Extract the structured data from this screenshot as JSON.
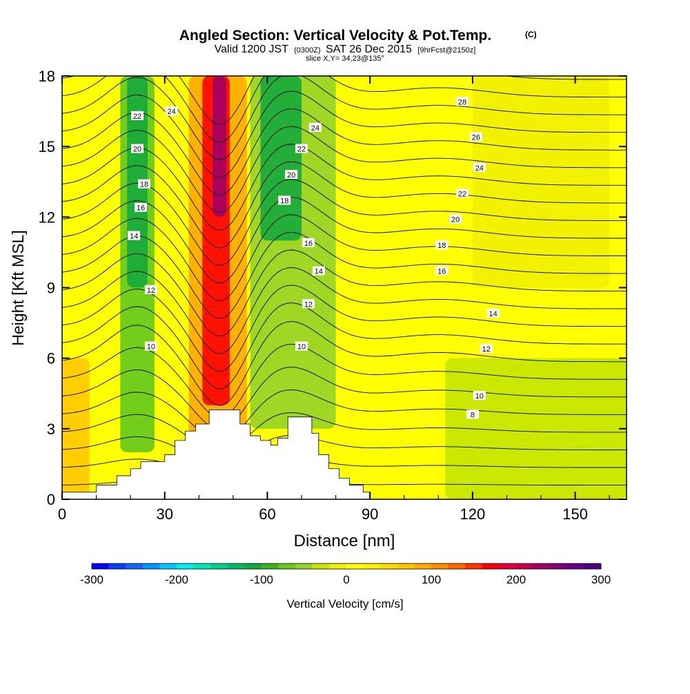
{
  "chart_data": {
    "type": "heatmap",
    "title": "Angled Section: Vertical Velocity & Pot.Temp.",
    "title_mark": "(C)",
    "subtitle": {
      "lead": "Valid 1200 JST",
      "utc": "(0300Z)",
      "date": "SAT 26 Dec 2015",
      "run": "[9hrFcst@2150z]"
    },
    "slice_label": "slice X,Y= 34,23@135°",
    "xlabel": "Distance [nm]",
    "ylabel": "Height [Kft MSL]",
    "xlim": [
      0,
      165
    ],
    "ylim": [
      0,
      18
    ],
    "x_ticks": [
      "0",
      "30",
      "60",
      "90",
      "120",
      "150"
    ],
    "y_ticks": [
      "0",
      "3",
      "6",
      "9",
      "12",
      "15",
      "18"
    ],
    "colorbar": {
      "label": "Vertical Velocity [cm/s]",
      "range": [
        -300,
        300
      ],
      "ticks": [
        "-300",
        "-200",
        "-100",
        "0",
        "100",
        "200",
        "300"
      ],
      "colors": [
        "#0000ff",
        "#0a3cff",
        "#1464ff",
        "#0096ff",
        "#00c8ff",
        "#00f0f0",
        "#00e6b4",
        "#00d08c",
        "#00bc64",
        "#14aa3c",
        "#3cb41e",
        "#64c81e",
        "#96d228",
        "#c8e600",
        "#f0f000",
        "#ffff00",
        "#fff000",
        "#ffdc00",
        "#ffc800",
        "#ffaa00",
        "#ff8c00",
        "#ff6400",
        "#ff3200",
        "#ff0000",
        "#e6003c",
        "#c8004b",
        "#a00064",
        "#820078",
        "#64008c",
        "#460082"
      ]
    },
    "velocity_field": {
      "x_nm": [
        0,
        3,
        9,
        15,
        18,
        21,
        25,
        28,
        31,
        34,
        37,
        40,
        43,
        46,
        48,
        50,
        53,
        56,
        59,
        62,
        65,
        68,
        71,
        74,
        77,
        80,
        85,
        90,
        95,
        100,
        105,
        108,
        112,
        115,
        118,
        121,
        124,
        127,
        130,
        135,
        140,
        145,
        150,
        155,
        160,
        165
      ],
      "z_kft": [
        0,
        1,
        2,
        3,
        4,
        5,
        6,
        7,
        8,
        9,
        10,
        11,
        12,
        13,
        14,
        15,
        16,
        17,
        18
      ],
      "regions_cm_s": [
        {
          "x": [
            0,
            8
          ],
          "z": [
            0,
            6
          ],
          "w": 60
        },
        {
          "x": [
            17,
            27
          ],
          "z": [
            2,
            18
          ],
          "w": -70
        },
        {
          "x": [
            19,
            25
          ],
          "z": [
            9,
            18
          ],
          "w": -120
        },
        {
          "x": [
            37,
            54
          ],
          "z": [
            0,
            18
          ],
          "w": 80
        },
        {
          "x": [
            41,
            49
          ],
          "z": [
            4,
            18
          ],
          "w": 160
        },
        {
          "x": [
            44,
            48
          ],
          "z": [
            12,
            18
          ],
          "w": 220
        },
        {
          "x": [
            55,
            80
          ],
          "z": [
            3,
            18
          ],
          "w": -60
        },
        {
          "x": [
            58,
            70
          ],
          "z": [
            11,
            18
          ],
          "w": -110
        },
        {
          "x": [
            85,
            110
          ],
          "z": [
            0,
            8
          ],
          "w": 10
        },
        {
          "x": [
            112,
            165
          ],
          "z": [
            0,
            6
          ],
          "w": -30
        },
        {
          "x": [
            120,
            160
          ],
          "z": [
            9,
            18
          ],
          "w": -20
        }
      ]
    },
    "theta_contours": {
      "labels": [
        {
          "text": "28",
          "x": 117,
          "z": 16.9
        },
        {
          "text": "26",
          "x": 121,
          "z": 15.4
        },
        {
          "text": "24",
          "x": 122,
          "z": 14.1
        },
        {
          "text": "22",
          "x": 117,
          "z": 13.0
        },
        {
          "text": "20",
          "x": 115,
          "z": 11.9
        },
        {
          "text": "18",
          "x": 111,
          "z": 10.8
        },
        {
          "text": "16",
          "x": 111,
          "z": 9.7
        },
        {
          "text": "14",
          "x": 126,
          "z": 7.9
        },
        {
          "text": "12",
          "x": 124,
          "z": 6.4
        },
        {
          "text": "10",
          "x": 122,
          "z": 4.4
        },
        {
          "text": "8",
          "x": 120,
          "z": 3.6
        },
        {
          "text": "22",
          "x": 22,
          "z": 16.3
        },
        {
          "text": "24",
          "x": 32,
          "z": 16.5
        },
        {
          "text": "20",
          "x": 22,
          "z": 14.9
        },
        {
          "text": "18",
          "x": 24,
          "z": 13.4
        },
        {
          "text": "16",
          "x": 23,
          "z": 12.4
        },
        {
          "text": "14",
          "x": 21,
          "z": 11.2
        },
        {
          "text": "12",
          "x": 26,
          "z": 8.9
        },
        {
          "text": "10",
          "x": 26,
          "z": 6.5
        },
        {
          "text": "24",
          "x": 74,
          "z": 15.8
        },
        {
          "text": "22",
          "x": 70,
          "z": 14.9
        },
        {
          "text": "20",
          "x": 67,
          "z": 13.8
        },
        {
          "text": "18",
          "x": 65,
          "z": 12.7
        },
        {
          "text": "16",
          "x": 72,
          "z": 10.9
        },
        {
          "text": "14",
          "x": 75,
          "z": 9.7
        },
        {
          "text": "12",
          "x": 72,
          "z": 8.3
        },
        {
          "text": "10",
          "x": 70,
          "z": 6.5
        }
      ]
    },
    "terrain": {
      "x": [
        0,
        10,
        10,
        16,
        16,
        20,
        20,
        23,
        23,
        30,
        30,
        33,
        33,
        36,
        36,
        39,
        39,
        43,
        43,
        52,
        52,
        55,
        55,
        58,
        58,
        61,
        61,
        63,
        63,
        66,
        66,
        73,
        73,
        75,
        75,
        78,
        78,
        81,
        81,
        84,
        84,
        88,
        88,
        90,
        90
      ],
      "z": [
        0.3,
        0.3,
        0.6,
        0.6,
        1.0,
        1.0,
        1.3,
        1.3,
        1.6,
        1.6,
        1.9,
        1.9,
        2.5,
        2.5,
        2.9,
        2.9,
        3.2,
        3.2,
        3.8,
        3.8,
        3.2,
        3.2,
        2.7,
        2.7,
        2.5,
        2.5,
        2.3,
        2.3,
        2.6,
        2.6,
        3.5,
        3.5,
        2.8,
        2.8,
        1.9,
        1.9,
        1.3,
        1.3,
        0.9,
        0.9,
        0.6,
        0.6,
        0.3,
        0.3,
        0
      ]
    }
  }
}
